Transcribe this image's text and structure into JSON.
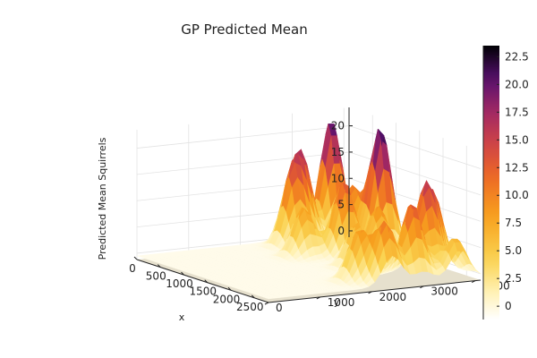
{
  "chart_data": {
    "type": "surface",
    "title": "GP Predicted Mean",
    "xlabel": "x",
    "ylabel": "y",
    "zlabel": "Predicted Mean Squirrels",
    "x_ticks": [
      "0",
      "500",
      "1000",
      "1500",
      "2000",
      "2500"
    ],
    "y_ticks": [
      "0",
      "1000",
      "2000",
      "3000",
      "4000"
    ],
    "z_ticks": [
      "0",
      "5",
      "10",
      "15",
      "20"
    ],
    "xlim": [
      0,
      2800
    ],
    "ylim": [
      0,
      4100
    ],
    "zlim": [
      -1.2,
      23.5
    ],
    "colorbar": {
      "colormap": "inferno",
      "range": [
        -1.2,
        23.5
      ],
      "ticks": [
        "0",
        "2.5",
        "5.0",
        "7.5",
        "10.0",
        "12.5",
        "15.0",
        "17.5",
        "20.0",
        "22.5"
      ]
    },
    "peaks": [
      {
        "x": 60,
        "y": 3700,
        "z": 22.0
      },
      {
        "x": 200,
        "y": 3000,
        "z": 15.0
      },
      {
        "x": 350,
        "y": 2700,
        "z": 13.0
      },
      {
        "x": 700,
        "y": 3500,
        "z": 11.0
      },
      {
        "x": 1000,
        "y": 3800,
        "z": 23.0
      },
      {
        "x": 1100,
        "y": 3000,
        "z": 14.0
      },
      {
        "x": 900,
        "y": 2400,
        "z": 9.0
      },
      {
        "x": 1500,
        "y": 3300,
        "z": 10.0
      },
      {
        "x": 1700,
        "y": 2700,
        "z": 8.0
      },
      {
        "x": 2100,
        "y": 3800,
        "z": 13.0
      },
      {
        "x": 2300,
        "y": 3500,
        "z": 15.5
      },
      {
        "x": 2550,
        "y": 3000,
        "z": 14.0
      },
      {
        "x": 2650,
        "y": 2400,
        "z": 11.0
      },
      {
        "x": 2400,
        "y": 2100,
        "z": 9.0
      },
      {
        "x": 2700,
        "y": 3700,
        "z": 7.0
      }
    ]
  }
}
